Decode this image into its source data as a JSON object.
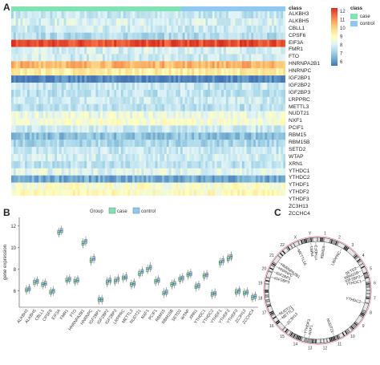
{
  "panels": {
    "a": "A",
    "b": "B",
    "c": "C"
  },
  "heatmap": {
    "class_label": "class",
    "class_legend": {
      "title": "class",
      "entries": [
        {
          "label": "case",
          "color": "#7fe3b3"
        },
        {
          "label": "control",
          "color": "#8fc8f0"
        }
      ]
    },
    "case_fraction": 0.62,
    "colorbar": {
      "ticks": [
        "12",
        "11",
        "10",
        "9",
        "8",
        "7",
        "6"
      ],
      "colors": [
        "#d7301f",
        "#f46d43",
        "#fdae61",
        "#fee090",
        "#ffffbf",
        "#e0f3f8",
        "#abd9e9",
        "#74add1",
        "#4575b4"
      ]
    },
    "genes": [
      {
        "name": "ALKBH3",
        "level": 7.6
      },
      {
        "name": "ALKBH5",
        "level": 7.9
      },
      {
        "name": "CBLL1",
        "level": 7.7
      },
      {
        "name": "CPSF6",
        "level": 7.3
      },
      {
        "name": "EIF3A",
        "level": 11.8
      },
      {
        "name": "FMR1",
        "level": 7.9
      },
      {
        "name": "FTO",
        "level": 7.8
      },
      {
        "name": "HNRNPA2B1",
        "level": 10.4
      },
      {
        "name": "HNRNPC",
        "level": 9.3
      },
      {
        "name": "IGF2BP1",
        "level": 5.7
      },
      {
        "name": "IGF2BP2",
        "level": 7.6
      },
      {
        "name": "IGF2BP3",
        "level": 7.5
      },
      {
        "name": "LRPPRC",
        "level": 7.7
      },
      {
        "name": "METTL3",
        "level": 7.4
      },
      {
        "name": "NUDT21",
        "level": 8.3
      },
      {
        "name": "NXF1",
        "level": 8.6
      },
      {
        "name": "PCIF1",
        "level": 7.7
      },
      {
        "name": "RBM15",
        "level": 6.7
      },
      {
        "name": "RBM15B",
        "level": 7.2
      },
      {
        "name": "SETD2",
        "level": 7.6
      },
      {
        "name": "WTAP",
        "level": 7.8
      },
      {
        "name": "XRN1",
        "level": 7.5
      },
      {
        "name": "YTHDC1",
        "level": 8.1
      },
      {
        "name": "YTHDC2",
        "level": 6.3
      },
      {
        "name": "YTHDF1",
        "level": 8.7
      },
      {
        "name": "YTHDF2",
        "level": 8.9
      },
      {
        "name": "YTHDF3",
        "level": 7.6
      },
      {
        "name": "ZC3H13",
        "level": 6.6
      },
      {
        "name": "ZCCHC4",
        "level": 5.9
      }
    ]
  },
  "chart_data": {
    "type": "box",
    "legend_title": "Group",
    "legend": [
      {
        "label": "case",
        "color": "#7fe3b3"
      },
      {
        "label": "control",
        "color": "#8fc8f0"
      }
    ],
    "ylabel": "gene expression",
    "ylim": [
      4.5,
      12.8
    ],
    "yticks": [
      6,
      8,
      10,
      12
    ],
    "categories": [
      "ALKBH3",
      "ALKBH5",
      "CBLL1",
      "CPSF6",
      "EIF3A",
      "FMR1",
      "FTO",
      "HNRNPA2B1",
      "HNRNPC",
      "IGF2BP1",
      "IGF2BP2",
      "IGF2BP3",
      "LRPPRC",
      "METTL3",
      "NUDT21",
      "NXF1",
      "PCIF1",
      "RBM15",
      "RBM15B",
      "SETD2",
      "WTAP",
      "XRN1",
      "YTHDC1",
      "YTHDC2",
      "YTHDF1",
      "YTHDF2",
      "YTHDF3",
      "ZC3H13",
      "ZCCHC4"
    ],
    "series": [
      {
        "name": "case",
        "medians": [
          6.1,
          6.8,
          6.6,
          5.9,
          11.4,
          7.0,
          6.9,
          10.4,
          8.8,
          5.2,
          6.8,
          6.9,
          7.2,
          6.6,
          7.6,
          8.0,
          6.9,
          5.8,
          6.6,
          7.1,
          7.5,
          6.4,
          7.4,
          5.7,
          8.6,
          9.0,
          5.9,
          5.8,
          5.4
        ]
      },
      {
        "name": "control",
        "medians": [
          6.2,
          6.9,
          6.7,
          6.0,
          11.6,
          7.1,
          7.0,
          10.6,
          9.0,
          5.2,
          7.0,
          7.1,
          7.3,
          6.7,
          7.8,
          8.2,
          7.0,
          5.9,
          6.7,
          7.2,
          7.6,
          6.5,
          7.5,
          5.8,
          8.8,
          9.2,
          6.0,
          5.9,
          5.5
        ]
      }
    ]
  },
  "circos": {
    "chromosomes": [
      "1",
      "2",
      "3",
      "4",
      "5",
      "6",
      "7",
      "8",
      "9",
      "10",
      "11",
      "12",
      "13",
      "14",
      "15",
      "16",
      "17",
      "18",
      "19",
      "20",
      "21",
      "22",
      "X",
      "Y"
    ],
    "genes": [
      {
        "name": "FMR1",
        "angle": -8
      },
      {
        "name": "YTHDF3",
        "angle": -2
      },
      {
        "name": "RBM15",
        "angle": 8
      },
      {
        "name": "LRPPRC",
        "angle": 30
      },
      {
        "name": "SETD2",
        "angle": 60
      },
      {
        "name": "RBM15B",
        "angle": 66
      },
      {
        "name": "IGF2BP2",
        "angle": 72
      },
      {
        "name": "YTHDC1",
        "angle": 78
      },
      {
        "name": "YTHDC2",
        "angle": 105
      },
      {
        "name": "NUDT21",
        "angle": 160
      },
      {
        "name": "NXF1",
        "angle": 190
      },
      {
        "name": "YTHDF3",
        "angle": 196
      },
      {
        "name": "ZC3H13",
        "angle": 222
      },
      {
        "name": "METTL3",
        "angle": 232
      },
      {
        "name": "NUDT21",
        "angle": 238
      },
      {
        "name": "IGF2BP3",
        "angle": 286
      },
      {
        "name": "IGF2BP1",
        "angle": 293
      },
      {
        "name": "HNRNPC",
        "angle": 300
      },
      {
        "name": "HNRNPA2B1",
        "angle": 306
      },
      {
        "name": "METTL16",
        "angle": 335
      }
    ]
  }
}
